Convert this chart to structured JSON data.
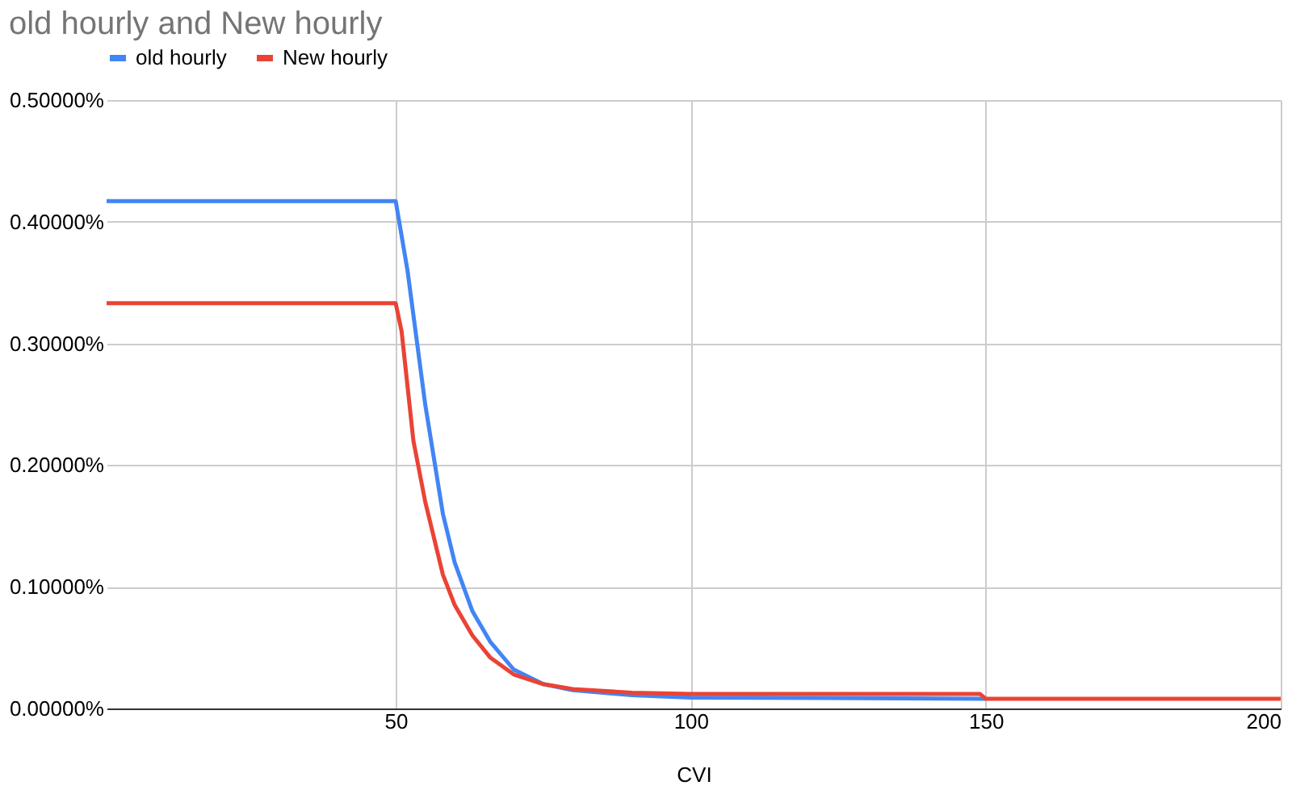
{
  "chart_data": {
    "type": "line",
    "title": "old hourly and New hourly",
    "xlabel": "CVI",
    "legend": "top",
    "grid": true,
    "marker": "none",
    "line_style": "solid",
    "xlim": [
      1,
      200
    ],
    "xticks": [
      50,
      100,
      150,
      200
    ],
    "ylim": [
      0,
      0.5
    ],
    "yticks": [
      {
        "value": 0,
        "label": "0.00000%"
      },
      {
        "value": 0.1,
        "label": "0.10000%"
      },
      {
        "value": 0.2,
        "label": "0.20000%"
      },
      {
        "value": 0.3,
        "label": "0.30000%"
      },
      {
        "value": 0.4,
        "label": "0.40000%"
      },
      {
        "value": 0.5,
        "label": "0.50000%"
      }
    ],
    "series": [
      {
        "name": "old hourly",
        "color": "#4285f4",
        "x": [
          1,
          50,
          52,
          55,
          58,
          60,
          63,
          66,
          70,
          75,
          80,
          90,
          100,
          150
        ],
        "values": [
          0.417,
          0.417,
          0.36,
          0.25,
          0.16,
          0.12,
          0.08,
          0.055,
          0.032,
          0.02,
          0.015,
          0.011,
          0.009,
          0.008
        ]
      },
      {
        "name": "New hourly",
        "color": "#ea4335",
        "x": [
          1,
          50,
          51,
          53,
          55,
          58,
          60,
          63,
          66,
          70,
          75,
          80,
          90,
          100,
          149,
          150,
          200
        ],
        "values": [
          0.333,
          0.333,
          0.31,
          0.22,
          0.17,
          0.11,
          0.085,
          0.06,
          0.042,
          0.028,
          0.02,
          0.016,
          0.013,
          0.012,
          0.012,
          0.008,
          0.008
        ]
      }
    ]
  }
}
